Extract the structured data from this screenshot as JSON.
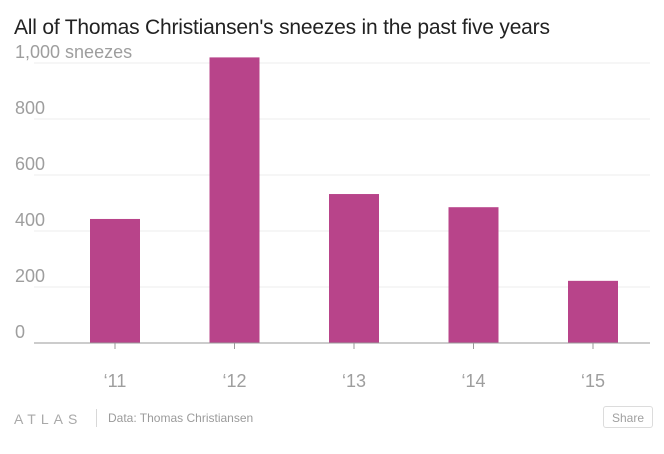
{
  "title": "All of Thomas Christiansen's sneezes in the past five years",
  "footer": {
    "logo": "ATLAS",
    "source": "Data: Thomas Christiansen",
    "share_label": "Share"
  },
  "colors": {
    "bar": "#b8448a",
    "grid": "#ececec",
    "axis": "#999999",
    "tick_label": "#9e9e9e",
    "title": "#222222"
  },
  "chart_data": {
    "type": "bar",
    "title": "All of Thomas Christiansen's sneezes in the past five years",
    "categories": [
      "‘11",
      "‘12",
      "‘13",
      "‘14",
      "‘15"
    ],
    "values": [
      443,
      1020,
      532,
      485,
      222
    ],
    "ylim": [
      0,
      1000
    ],
    "yticks": [
      0,
      200,
      400,
      600,
      800,
      1000
    ],
    "ytick_labels": [
      "0",
      "200",
      "400",
      "600",
      "800",
      "1,000 sneezes"
    ],
    "xlabel": "",
    "ylabel": "",
    "grid": true,
    "legend": "none"
  }
}
